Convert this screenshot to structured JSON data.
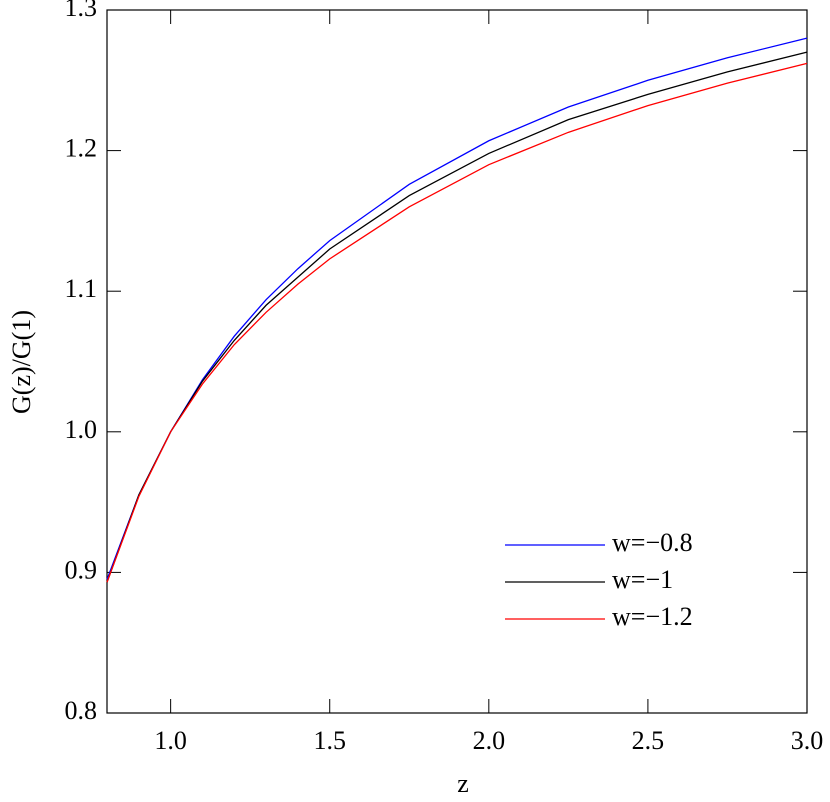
{
  "chart_data": {
    "type": "line",
    "x_label": "z",
    "y_label": "G(z)/G(1)",
    "x": [
      0.8,
      0.9,
      1.0,
      1.1,
      1.2,
      1.3,
      1.4,
      1.5,
      1.75,
      2.0,
      2.25,
      2.5,
      2.75,
      3.0
    ],
    "series": [
      {
        "name": "w=−0.8",
        "color": "#0000ff",
        "values": [
          0.895,
          0.955,
          1.0,
          1.037,
          1.068,
          1.094,
          1.116,
          1.136,
          1.176,
          1.207,
          1.231,
          1.25,
          1.266,
          1.28
        ]
      },
      {
        "name": "w=−1",
        "color": "#000000",
        "values": [
          0.893,
          0.955,
          1.0,
          1.036,
          1.065,
          1.09,
          1.11,
          1.13,
          1.168,
          1.198,
          1.222,
          1.24,
          1.256,
          1.27
        ]
      },
      {
        "name": "w=−1.2",
        "color": "#ff0000",
        "values": [
          0.893,
          0.954,
          1.0,
          1.034,
          1.062,
          1.085,
          1.105,
          1.123,
          1.16,
          1.19,
          1.213,
          1.232,
          1.248,
          1.262
        ]
      }
    ],
    "xlim": [
      0.8,
      3.0
    ],
    "xticks": [
      {
        "value": 1,
        "label": "1.0"
      },
      1.5,
      {
        "value": 2,
        "label": "2.0"
      },
      2.5,
      {
        "value": 3,
        "label": "3.0"
      }
    ],
    "ylim": [
      0.8,
      1.3
    ],
    "yticks": [
      0.8,
      0.9,
      {
        "value": 1,
        "label": "1.0"
      },
      1.1,
      1.2,
      1.3
    ],
    "legend": "lower right",
    "grid": false
  }
}
